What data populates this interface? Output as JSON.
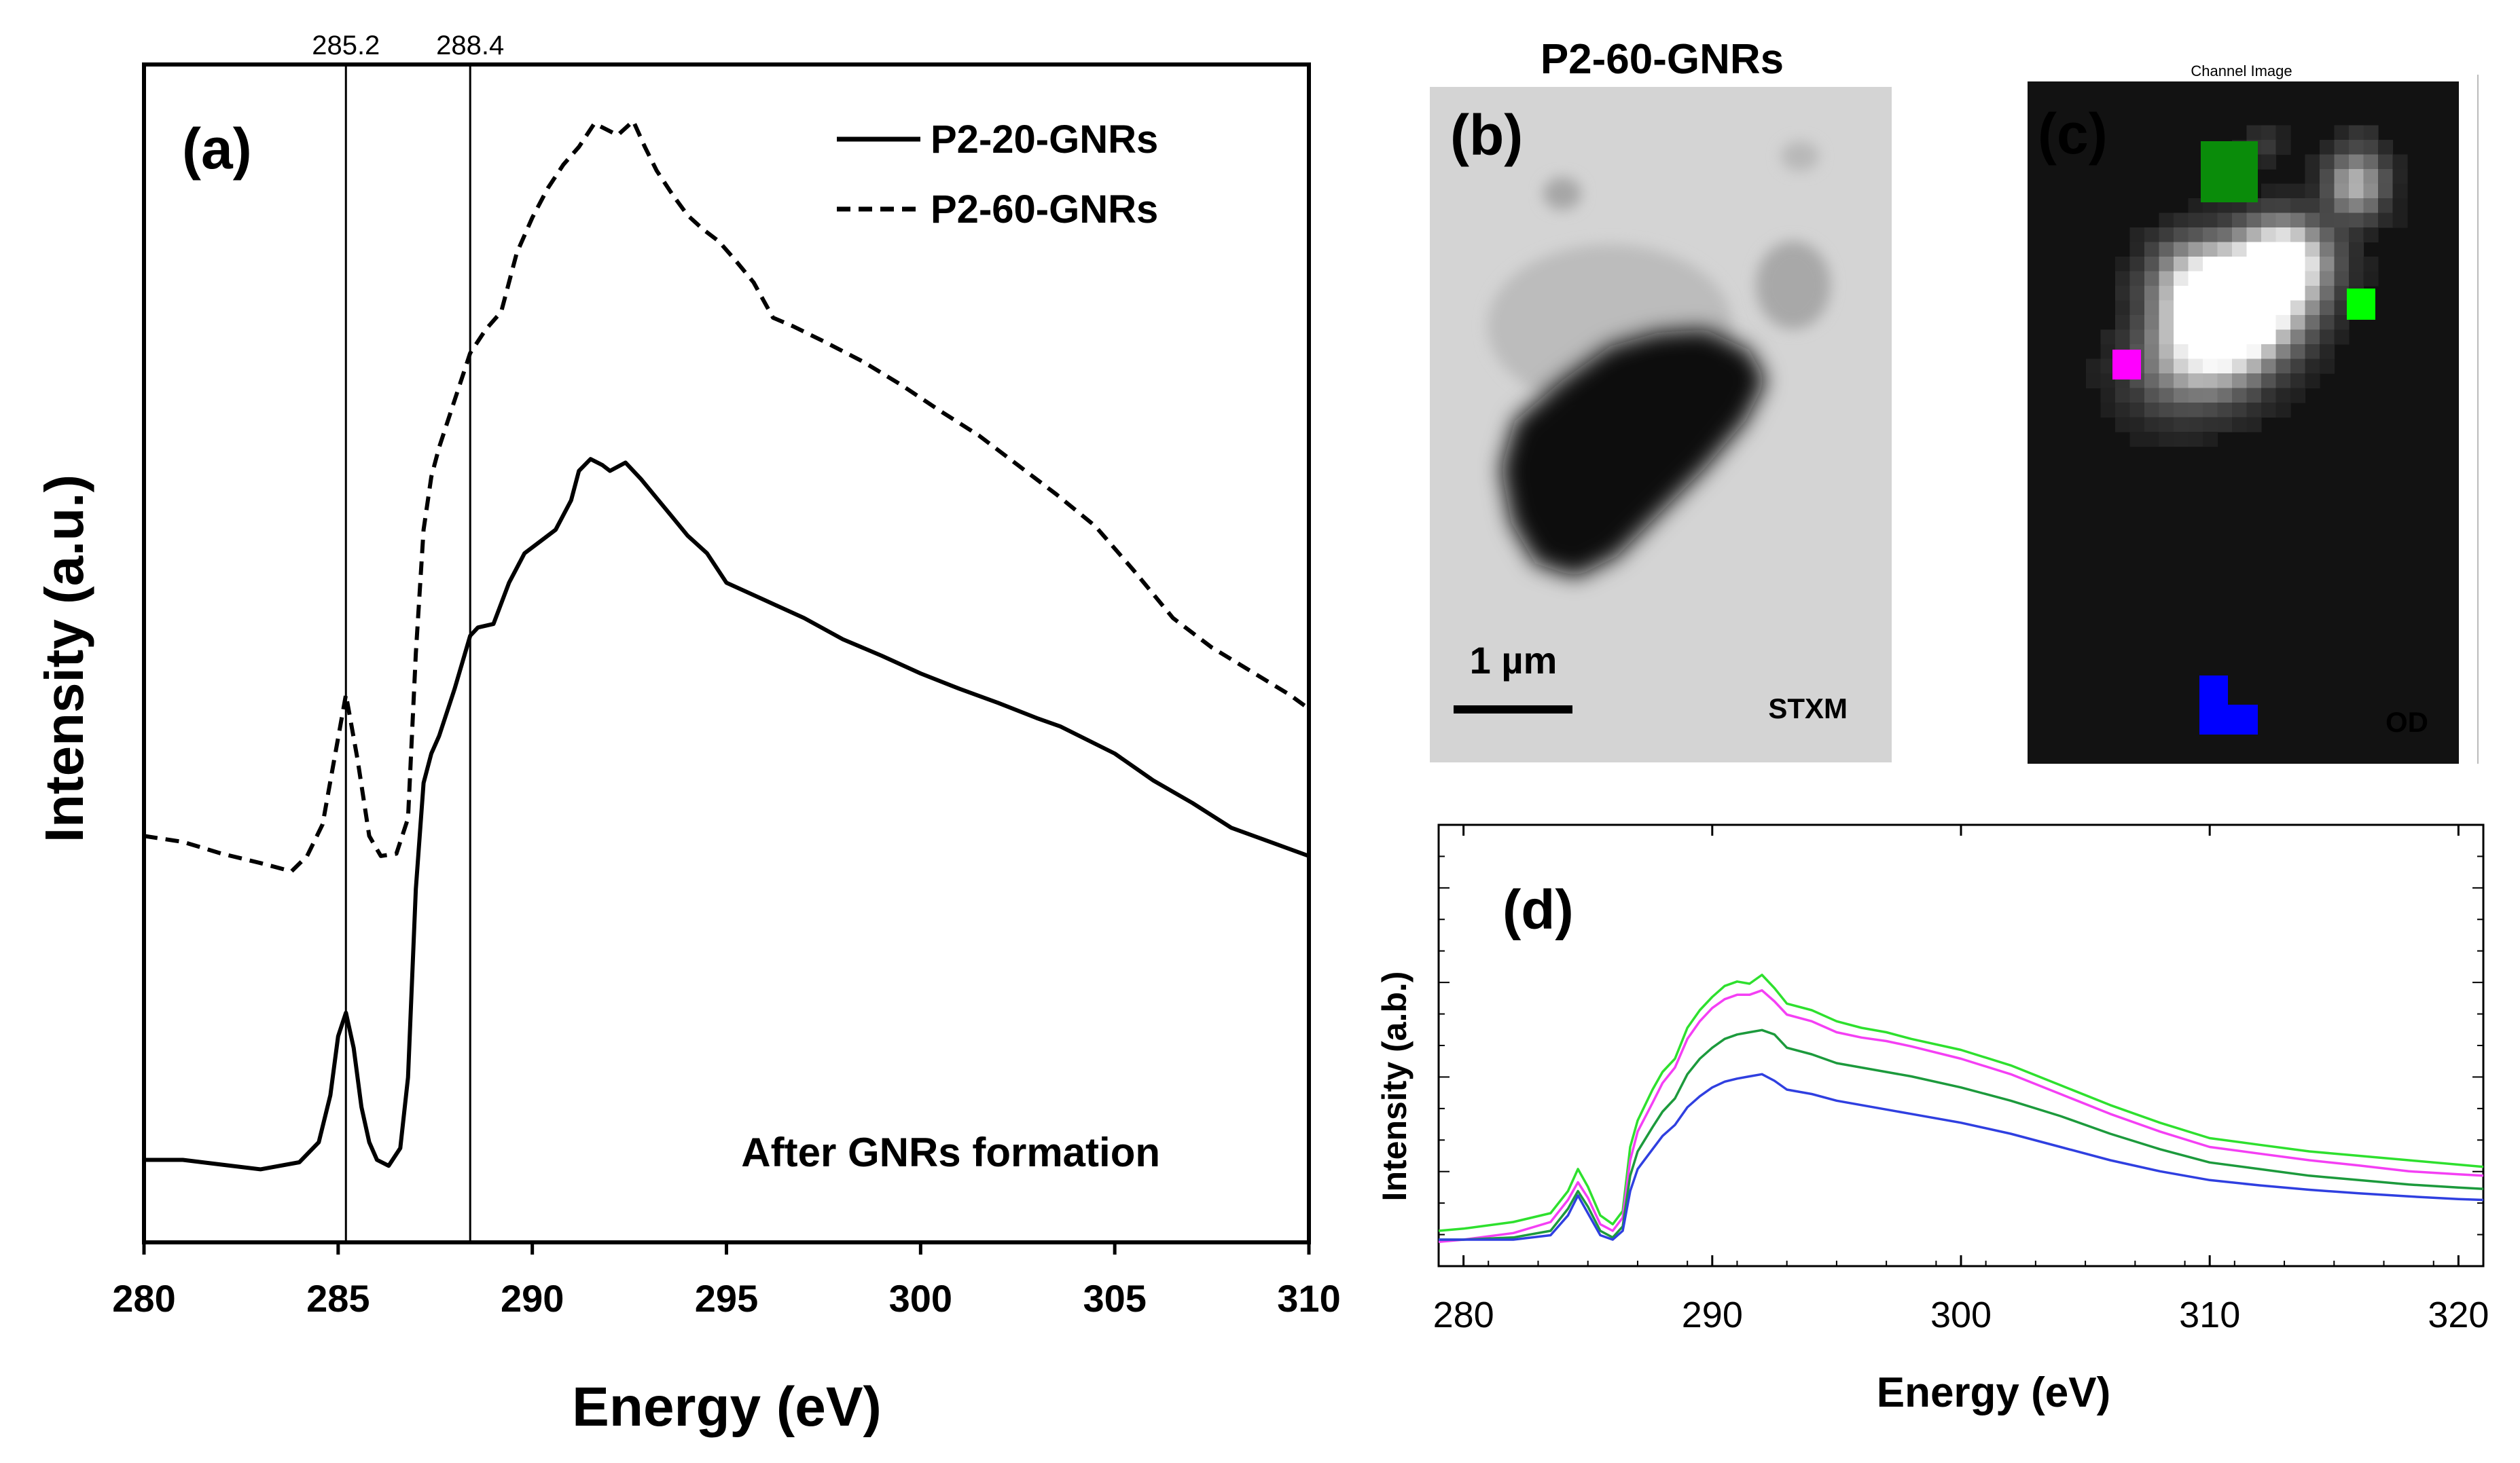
{
  "chart_data": [
    {
      "panel": "a",
      "type": "line",
      "panel_label": "(a)",
      "xlabel": "Energy (eV)",
      "ylabel": "Intensity (a.u.)",
      "xlim": [
        280,
        310
      ],
      "xticks": [
        280,
        285,
        290,
        295,
        300,
        305,
        310
      ],
      "ylim": [
        0,
        100
      ],
      "annotation": "After GNRs formation",
      "legend_position": "top-right",
      "reference_lines": [
        {
          "x": 285.2,
          "label": "285.2"
        },
        {
          "x": 288.4,
          "label": "288.4"
        }
      ],
      "series": [
        {
          "name": "P2-20-GNRs",
          "style": "solid",
          "x": [
            280,
            281,
            282,
            283,
            284,
            284.5,
            284.8,
            285.0,
            285.2,
            285.4,
            285.6,
            285.8,
            286.0,
            286.3,
            286.6,
            286.8,
            287.0,
            287.2,
            287.4,
            287.6,
            288.0,
            288.4,
            288.6,
            289.0,
            289.4,
            289.8,
            290.2,
            290.6,
            291.0,
            291.2,
            291.5,
            291.8,
            292.0,
            292.4,
            292.8,
            293.2,
            293.6,
            294.0,
            294.5,
            295.0,
            296.0,
            297.0,
            298.0,
            299.0,
            300.0,
            301.0,
            302.0,
            303.0,
            303.6,
            305.0,
            306.0,
            307.0,
            308.0,
            309.0,
            310.0
          ],
          "y": [
            7.0,
            7.0,
            6.6,
            6.2,
            6.8,
            8.5,
            12.5,
            17.5,
            19.5,
            16.5,
            11.5,
            8.5,
            7.0,
            6.5,
            8.0,
            14.0,
            30.0,
            39.0,
            41.5,
            43.0,
            47.0,
            51.5,
            52.2,
            52.5,
            56.0,
            58.5,
            59.5,
            60.5,
            63.0,
            65.5,
            66.5,
            66.0,
            65.5,
            66.2,
            64.8,
            63.2,
            61.6,
            60.0,
            58.5,
            56.0,
            54.5,
            53.0,
            51.2,
            49.8,
            48.3,
            47.0,
            45.8,
            44.5,
            43.8,
            41.5,
            39.2,
            37.3,
            35.2,
            34.0,
            32.8
          ]
        },
        {
          "name": "P2-60-GNRs",
          "style": "dashed",
          "x": [
            280,
            281,
            282,
            283,
            283.8,
            284.2,
            284.6,
            284.9,
            285.2,
            285.5,
            285.8,
            286.1,
            286.5,
            286.8,
            287.0,
            287.2,
            287.4,
            287.6,
            287.8,
            288.0,
            288.4,
            288.8,
            289.2,
            289.6,
            290.0,
            290.4,
            290.8,
            291.2,
            291.6,
            291.9,
            292.2,
            292.6,
            292.9,
            293.2,
            293.6,
            294.0,
            294.4,
            294.8,
            295.2,
            295.7,
            296.2,
            296.7,
            297.5,
            298.5,
            299.5,
            300.5,
            301.5,
            302.5,
            303.5,
            304.5,
            305.5,
            306.5,
            307.5,
            308.5,
            309.5,
            310.0
          ],
          "y": [
            34.5,
            34.0,
            33.0,
            32.2,
            31.5,
            32.8,
            35.5,
            41.0,
            46.5,
            41.0,
            34.5,
            32.8,
            33.0,
            36.0,
            50.0,
            60.5,
            65.0,
            67.5,
            69.5,
            71.5,
            75.5,
            77.5,
            79.0,
            84.0,
            87.0,
            89.5,
            91.5,
            93.0,
            95.0,
            94.5,
            94.0,
            95.2,
            93.0,
            91.0,
            89.0,
            87.2,
            86.0,
            85.0,
            83.5,
            81.5,
            78.5,
            77.8,
            76.5,
            74.8,
            72.8,
            70.6,
            68.5,
            66.0,
            63.5,
            60.8,
            57.0,
            53.0,
            50.5,
            48.5,
            46.5,
            45.3
          ]
        }
      ]
    },
    {
      "panel": "b",
      "type": "image",
      "panel_label": "(b)",
      "title": "P2-60-GNRs",
      "scale_bar_label": "1 µm",
      "mode_label": "STXM"
    },
    {
      "panel": "c",
      "type": "heatmap",
      "panel_label": "(c)",
      "header": "Channel Image",
      "mode_label": "OD",
      "colors": {
        "dark_green": "#0a8c0a",
        "bright_green": "#00ff00",
        "magenta": "#ff00ff",
        "blue": "#0000ff"
      }
    },
    {
      "panel": "d",
      "type": "line",
      "panel_label": "(d)",
      "xlabel": "Energy (eV)",
      "ylabel": "Intensity (a.b.)",
      "xlim": [
        279,
        321
      ],
      "xticks": [
        280,
        290,
        300,
        310,
        320
      ],
      "ylim": [
        0,
        100
      ],
      "series": [
        {
          "name": "bright-green",
          "color": "#2ee02e",
          "x": [
            279,
            280,
            282,
            283.5,
            284.2,
            284.6,
            285.0,
            285.5,
            286.0,
            286.4,
            286.7,
            287.0,
            287.6,
            288.0,
            288.5,
            289.0,
            289.5,
            290.0,
            290.5,
            291.0,
            291.5,
            292.0,
            292.5,
            293.0,
            294.0,
            295.0,
            296.0,
            297.0,
            298.0,
            300.0,
            302.0,
            304.0,
            306.0,
            308.0,
            310.0,
            312.0,
            314.0,
            316.0,
            318.0,
            320.0,
            321.0
          ],
          "y": [
            8.0,
            8.5,
            10.0,
            12.0,
            17.0,
            22.0,
            18.0,
            11.5,
            9.5,
            12.5,
            27.0,
            33.0,
            40.0,
            44.0,
            47.0,
            54.0,
            58.0,
            61.0,
            63.5,
            64.5,
            64.0,
            66.0,
            63.0,
            59.5,
            58.0,
            55.5,
            54.0,
            53.0,
            51.5,
            49.0,
            45.5,
            41.0,
            36.5,
            32.5,
            29.0,
            27.5,
            26.0,
            25.0,
            24.0,
            23.0,
            22.5
          ]
        },
        {
          "name": "magenta",
          "color": "#f43ff4",
          "x": [
            279,
            280,
            282,
            283.5,
            284.2,
            284.6,
            285.0,
            285.5,
            286.0,
            286.4,
            286.7,
            287.0,
            287.6,
            288.0,
            288.5,
            289.0,
            289.5,
            290.0,
            290.5,
            291.0,
            291.5,
            292.0,
            292.5,
            293.0,
            294.0,
            295.0,
            296.0,
            297.0,
            298.0,
            300.0,
            302.0,
            304.0,
            306.0,
            308.0,
            310.0,
            312.0,
            314.0,
            316.0,
            318.0,
            320.0,
            321.0
          ],
          "y": [
            5.5,
            6.0,
            7.5,
            10.0,
            15.0,
            19.0,
            15.5,
            9.5,
            8.0,
            11.0,
            24.0,
            30.5,
            37.0,
            41.5,
            45.0,
            51.5,
            55.5,
            58.5,
            60.5,
            61.5,
            61.5,
            62.5,
            60.0,
            57.0,
            55.5,
            53.0,
            51.8,
            51.0,
            49.8,
            47.0,
            43.5,
            39.0,
            34.5,
            30.5,
            27.0,
            25.5,
            24.0,
            22.8,
            21.5,
            20.8,
            20.5
          ]
        },
        {
          "name": "dark-green",
          "color": "#1c9a3c",
          "x": [
            279,
            280,
            282,
            283.5,
            284.2,
            284.6,
            285.0,
            285.5,
            286.0,
            286.4,
            286.7,
            287.0,
            287.6,
            288.0,
            288.5,
            289.0,
            289.5,
            290.0,
            290.5,
            291.0,
            291.5,
            292.0,
            292.5,
            293.0,
            294.0,
            295.0,
            296.0,
            297.0,
            298.0,
            300.0,
            302.0,
            304.0,
            306.0,
            308.0,
            310.0,
            312.0,
            314.0,
            316.0,
            318.0,
            320.0,
            321.0
          ],
          "y": [
            6.0,
            6.0,
            6.5,
            8.0,
            13.0,
            17.0,
            13.5,
            8.0,
            6.5,
            9.0,
            20.5,
            26.0,
            31.5,
            35.0,
            38.0,
            43.5,
            47.0,
            49.5,
            51.5,
            52.5,
            53.0,
            53.5,
            52.5,
            49.5,
            48.0,
            46.0,
            45.0,
            44.0,
            43.0,
            40.5,
            37.5,
            34.0,
            30.0,
            26.5,
            23.5,
            22.0,
            20.5,
            19.5,
            18.5,
            17.8,
            17.5
          ]
        },
        {
          "name": "blue",
          "color": "#2f3fe0",
          "x": [
            279,
            280,
            282,
            283.5,
            284.2,
            284.6,
            285.0,
            285.5,
            286.0,
            286.4,
            286.7,
            287.0,
            287.6,
            288.0,
            288.5,
            289.0,
            289.5,
            290.0,
            290.5,
            291.0,
            291.5,
            292.0,
            292.5,
            293.0,
            294.0,
            295.0,
            296.0,
            297.0,
            298.0,
            300.0,
            302.0,
            304.0,
            306.0,
            308.0,
            310.0,
            312.0,
            314.0,
            316.0,
            318.0,
            320.0,
            321.0
          ],
          "y": [
            6.0,
            6.0,
            6.0,
            7.0,
            11.5,
            16.0,
            12.0,
            7.0,
            6.0,
            8.0,
            17.0,
            22.0,
            26.5,
            29.5,
            32.0,
            36.0,
            38.5,
            40.5,
            41.8,
            42.5,
            43.0,
            43.5,
            42.0,
            40.0,
            39.0,
            37.5,
            36.5,
            35.5,
            34.5,
            32.5,
            30.0,
            27.0,
            24.0,
            21.5,
            19.5,
            18.3,
            17.3,
            16.5,
            15.8,
            15.2,
            15.0
          ]
        }
      ]
    }
  ]
}
